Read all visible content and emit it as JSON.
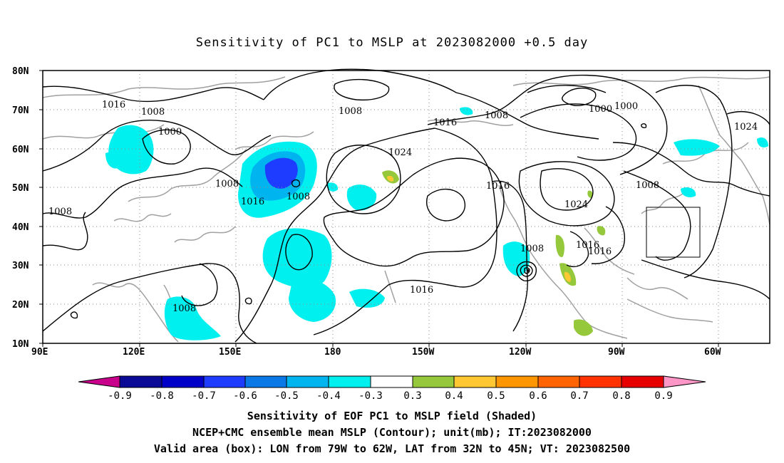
{
  "title": "Sensitivity of PC1 to MSLP at 2023082000 +0.5 day",
  "lat_labels": [
    "80N",
    "70N",
    "60N",
    "50N",
    "40N",
    "30N",
    "20N",
    "10N"
  ],
  "lon_labels": [
    "90E",
    "120E",
    "150E",
    "180",
    "150W",
    "120W",
    "90W",
    "60W"
  ],
  "contour_labels": [
    "1016",
    "1008",
    "1000",
    "1008",
    "1016",
    "1008",
    "1008",
    "1024",
    "1016",
    "1008",
    "1000",
    "1000",
    "1024",
    "1008",
    "1016",
    "1024",
    "1008",
    "1016",
    "1016",
    "1008",
    "1016"
  ],
  "colorbar": {
    "labels": [
      "-0.9",
      "-0.8",
      "-0.7",
      "-0.6",
      "-0.5",
      "-0.4",
      "-0.3",
      "0.3",
      "0.4",
      "0.5",
      "0.6",
      "0.7",
      "0.8",
      "0.9"
    ],
    "colors": [
      "#c8008c",
      "#0a0a96",
      "#0000c8",
      "#1e3cff",
      "#0a78e6",
      "#00b4f0",
      "#00f0f0",
      "#ffffff",
      "#96c83c",
      "#ffc832",
      "#ff9600",
      "#ff6400",
      "#ff3200",
      "#e60000",
      "#ff96c8"
    ]
  },
  "captions": [
    "Sensitivity of EOF PC1 to MSLP field (Shaded)",
    "NCEP+CMC ensemble mean MSLP (Contour); unit(mb); IT:2023082000",
    "Valid area (box): LON from 79W to 62W, LAT from 32N to 45N; VT: 2023082500"
  ],
  "valid_box": {
    "lon": [
      -79,
      -62
    ],
    "lat": [
      32,
      45
    ]
  }
}
